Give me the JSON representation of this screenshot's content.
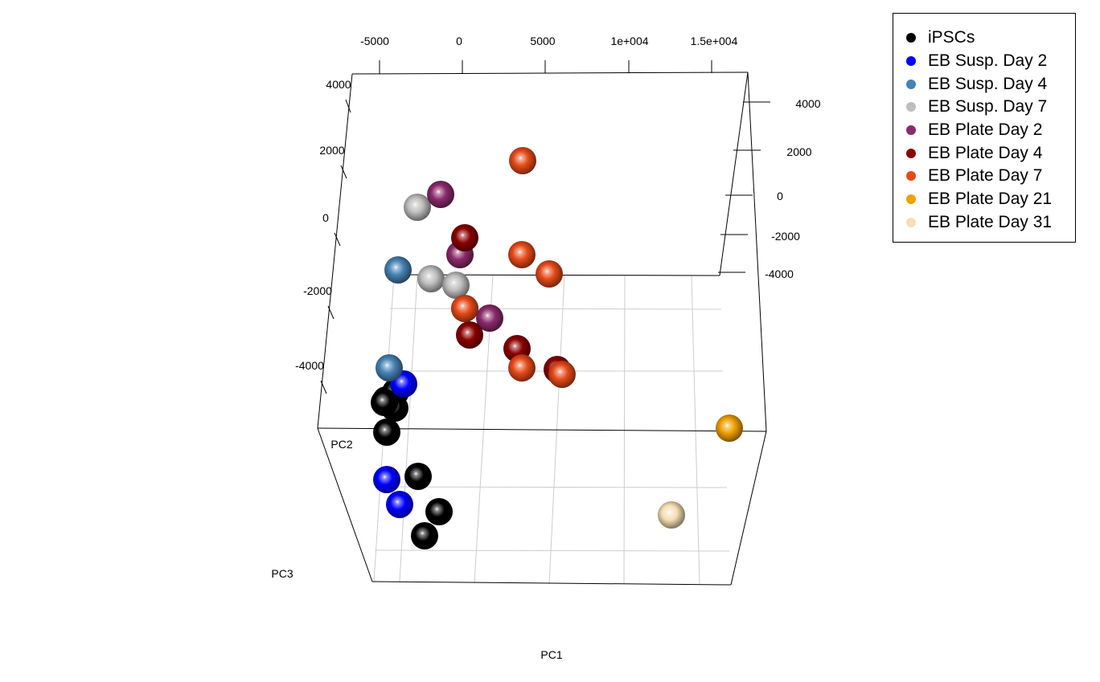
{
  "chart_data": {
    "type": "scatter",
    "projection": "3d",
    "x_axis_label": "PC1",
    "y_axis_label": "PC2",
    "z_axis_label": "PC3",
    "top_ticks": [
      "-5000",
      "0",
      "5000",
      "1e+004",
      "1.5e+004"
    ],
    "left_ticks": [
      "4000",
      "2000",
      "0",
      "-2000",
      "-4000"
    ],
    "right_ticks": [
      "4000",
      "2000",
      "0",
      "-2000",
      "-4000"
    ],
    "legend_placement": "top-right",
    "series": [
      {
        "name": "iPSCs",
        "color": "#000000",
        "count": 8
      },
      {
        "name": "EB Susp. Day 2",
        "color": "#0000ff",
        "count": 3
      },
      {
        "name": "EB Susp. Day 4",
        "color": "#4682b4",
        "count": 2
      },
      {
        "name": "EB Susp. Day 7",
        "color": "#bebebe",
        "count": 3
      },
      {
        "name": "EB Plate Day 2",
        "color": "#8b2a6b",
        "count": 3
      },
      {
        "name": "EB Plate Day 4",
        "color": "#8b0000",
        "count": 4
      },
      {
        "name": "EB Plate Day 7",
        "color": "#e64a19",
        "count": 7
      },
      {
        "name": "EB Plate Day 21",
        "color": "#f0a000",
        "count": 1
      },
      {
        "name": "EB Plate Day 31",
        "color": "#f5deb3",
        "count": 1
      }
    ]
  }
}
